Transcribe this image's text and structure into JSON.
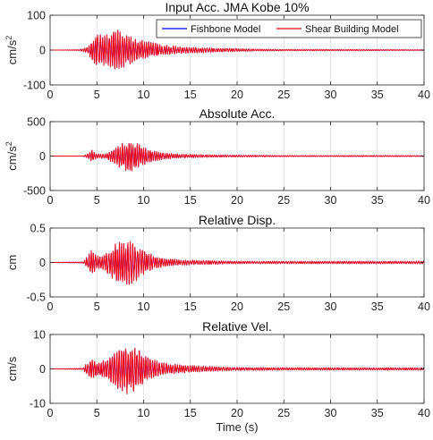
{
  "figure": {
    "xlabel": "Time (s)"
  },
  "chart_data": [
    {
      "type": "line",
      "title": "Input Acc. JMA Kobe 10%",
      "ylabel_main": "cm/s",
      "ylabel_sup": "2",
      "xlim": [
        0,
        40
      ],
      "ylim": [
        -100,
        100
      ],
      "xticks": [
        0,
        5,
        10,
        15,
        20,
        25,
        30,
        35,
        40
      ],
      "yticks": [
        -100,
        0,
        100
      ],
      "grid": "vertical",
      "legend": {
        "placement": "top-right",
        "entries": [
          {
            "name": "Fishbone Model",
            "color": "#0000ff"
          },
          {
            "name": "Shear Building Model",
            "color": "#ff0000"
          }
        ]
      },
      "series": [
        {
          "name": "Fishbone Model",
          "color": "#0000ff",
          "envelope": {
            "t": [
              0,
              3,
              4,
              4.5,
              5,
              6,
              7,
              8,
              9,
              10,
              11,
              12,
              14,
              18,
              22,
              26,
              32,
              40
            ],
            "amp": [
              0,
              1,
              8,
              30,
              55,
              45,
              60,
              50,
              35,
              28,
              22,
              15,
              10,
              6,
              3,
              2,
              2,
              1
            ]
          }
        },
        {
          "name": "Shear Building Model",
          "color": "#ff0000",
          "envelope": {
            "t": [
              0,
              3,
              4,
              4.5,
              5,
              6,
              7,
              8,
              9,
              10,
              11,
              12,
              14,
              18,
              22,
              26,
              32,
              40
            ],
            "amp": [
              0,
              1,
              8,
              30,
              55,
              45,
              60,
              50,
              35,
              28,
              22,
              15,
              10,
              6,
              3,
              2,
              2,
              1
            ]
          }
        }
      ]
    },
    {
      "type": "line",
      "title": "Absolute Acc.",
      "ylabel_main": "cm/s",
      "ylabel_sup": "2",
      "xlim": [
        0,
        40
      ],
      "ylim": [
        -500,
        500
      ],
      "xticks": [
        0,
        5,
        10,
        15,
        20,
        25,
        30,
        35,
        40
      ],
      "yticks": [
        -500,
        0,
        500
      ],
      "grid": "vertical",
      "series": [
        {
          "name": "Fishbone Model",
          "color": "#0000ff",
          "envelope": {
            "t": [
              0,
              3.5,
              4,
              4.5,
              5,
              6,
              7,
              7.5,
              8,
              9,
              10,
              11,
              12,
              14,
              17,
              20,
              25,
              30,
              35,
              40
            ],
            "amp": [
              0,
              2,
              30,
              90,
              30,
              40,
              130,
              170,
              220,
              230,
              130,
              90,
              50,
              30,
              20,
              15,
              10,
              8,
              10,
              8
            ]
          }
        },
        {
          "name": "Shear Building Model",
          "color": "#ff0000",
          "envelope": {
            "t": [
              0,
              3.5,
              4,
              4.5,
              5,
              6,
              7,
              7.5,
              8,
              9,
              10,
              11,
              12,
              14,
              17,
              20,
              25,
              30,
              35,
              40
            ],
            "amp": [
              0,
              2,
              30,
              90,
              30,
              40,
              130,
              170,
              220,
              230,
              130,
              90,
              50,
              30,
              20,
              15,
              10,
              8,
              10,
              8
            ]
          }
        }
      ]
    },
    {
      "type": "line",
      "title": "Relative Disp.",
      "ylabel_main": "cm",
      "ylabel_sup": "",
      "xlim": [
        0,
        40
      ],
      "ylim": [
        -0.5,
        0.5
      ],
      "xticks": [
        0,
        5,
        10,
        15,
        20,
        25,
        30,
        35,
        40
      ],
      "yticks": [
        -0.5,
        0,
        0.5
      ],
      "grid": "vertical",
      "series": [
        {
          "name": "Fishbone Model",
          "color": "#0000ff",
          "envelope": {
            "t": [
              0,
              3.5,
              4,
              4.5,
              5,
              6,
              7,
              8,
              9,
              10,
              11,
              12,
              14,
              17,
              20,
              25,
              30,
              35,
              40
            ],
            "amp": [
              0,
              0.01,
              0.1,
              0.2,
              0.1,
              0.15,
              0.3,
              0.35,
              0.3,
              0.18,
              0.12,
              0.07,
              0.04,
              0.03,
              0.02,
              0.02,
              0.02,
              0.02,
              0.02
            ]
          }
        },
        {
          "name": "Shear Building Model",
          "color": "#ff0000",
          "envelope": {
            "t": [
              0,
              3.5,
              4,
              4.5,
              5,
              6,
              7,
              8,
              9,
              10,
              11,
              12,
              14,
              17,
              20,
              25,
              30,
              35,
              40
            ],
            "amp": [
              0,
              0.01,
              0.1,
              0.2,
              0.1,
              0.15,
              0.3,
              0.35,
              0.3,
              0.18,
              0.12,
              0.07,
              0.04,
              0.03,
              0.02,
              0.02,
              0.02,
              0.02,
              0.02
            ]
          }
        }
      ]
    },
    {
      "type": "line",
      "title": "Relative Vel.",
      "ylabel_main": "cm/s",
      "ylabel_sup": "",
      "xlim": [
        0,
        40
      ],
      "ylim": [
        -10,
        10
      ],
      "xticks": [
        0,
        5,
        10,
        15,
        20,
        25,
        30,
        35,
        40
      ],
      "yticks": [
        -10,
        0,
        10
      ],
      "grid": "vertical",
      "series": [
        {
          "name": "Fishbone Model",
          "color": "#0000ff",
          "envelope": {
            "t": [
              0,
              3.5,
              4,
              4.5,
              5,
              6,
              7,
              8,
              9,
              10,
              11,
              12,
              14,
              17,
              20,
              25,
              30,
              35,
              40
            ],
            "amp": [
              0,
              0.2,
              2,
              3.5,
              2,
              3,
              6,
              7.5,
              7,
              4.5,
              3,
              2,
              1.2,
              0.8,
              0.5,
              0.4,
              0.4,
              0.4,
              0.4
            ]
          }
        },
        {
          "name": "Shear Building Model",
          "color": "#ff0000",
          "envelope": {
            "t": [
              0,
              3.5,
              4,
              4.5,
              5,
              6,
              7,
              8,
              9,
              10,
              11,
              12,
              14,
              17,
              20,
              25,
              30,
              35,
              40
            ],
            "amp": [
              0,
              0.2,
              2,
              3.5,
              2,
              3,
              6,
              7.5,
              7,
              4.5,
              3,
              2,
              1.2,
              0.8,
              0.5,
              0.4,
              0.4,
              0.4,
              0.4
            ]
          }
        }
      ]
    }
  ]
}
